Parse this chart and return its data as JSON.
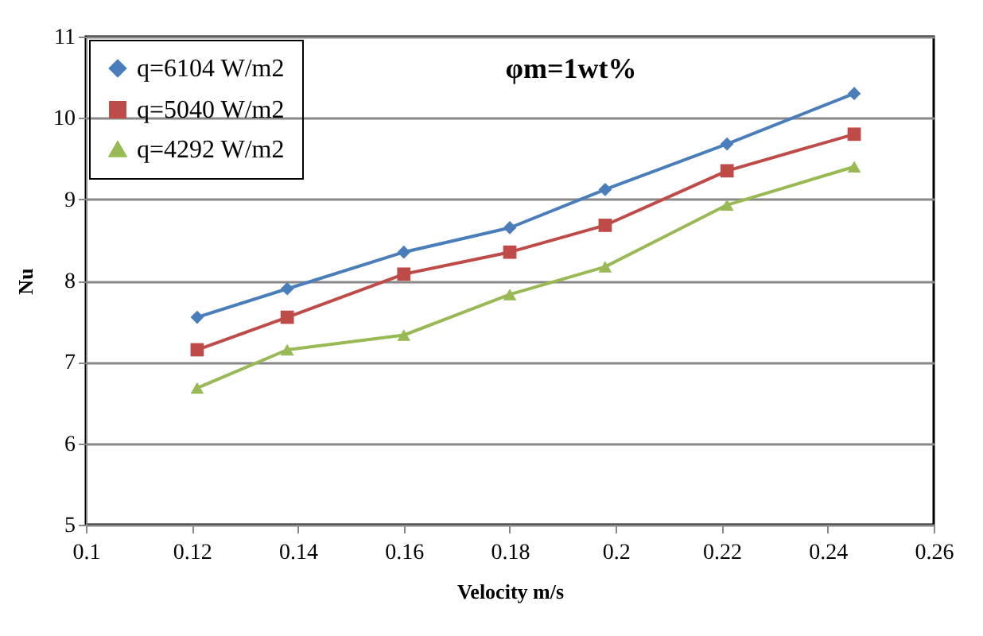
{
  "chart_data": {
    "type": "line",
    "xlabel": "Velocity m/s",
    "ylabel": "Nu",
    "annotations": [
      "φm=1wt%"
    ],
    "x": [
      0.121,
      0.138,
      0.16,
      0.18,
      0.198,
      0.221,
      0.245
    ],
    "series": [
      {
        "name": "q=6104 W/m2",
        "color": "#4a7ebb",
        "marker": "diamond",
        "values": [
          7.55,
          7.9,
          8.35,
          8.65,
          9.12,
          9.68,
          10.3
        ]
      },
      {
        "name": "q=5040 W/m2",
        "color": "#be4b48",
        "marker": "square",
        "values": [
          7.15,
          7.55,
          8.08,
          8.35,
          8.68,
          9.35,
          9.8
        ]
      },
      {
        "name": "q=4292 W/m2",
        "color": "#98b954",
        "marker": "triangle",
        "values": [
          6.68,
          7.15,
          7.33,
          7.83,
          8.17,
          8.93,
          9.4
        ]
      }
    ],
    "xlim": [
      0.1,
      0.26
    ],
    "xticks": [
      0.1,
      0.12,
      0.14,
      0.16,
      0.18,
      0.2,
      0.22,
      0.24,
      0.26
    ],
    "ylim": [
      5,
      11
    ],
    "yticks": [
      5,
      6,
      7,
      8,
      9,
      10,
      11
    ],
    "grid": "y",
    "legend": "top left",
    "line_style": "solid"
  }
}
